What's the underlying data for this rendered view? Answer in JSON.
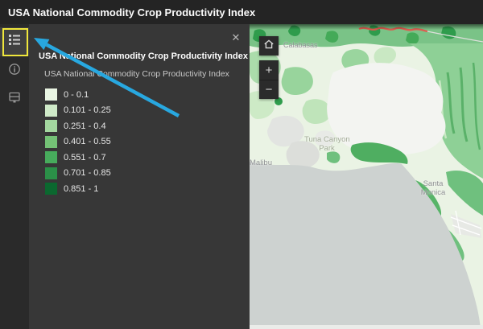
{
  "header": {
    "title": "USA National Commodity Crop Productivity Index"
  },
  "sidebar": {
    "items": [
      {
        "id": "legend",
        "selected": true,
        "highlighted": true
      },
      {
        "id": "information",
        "selected": false
      },
      {
        "id": "details",
        "selected": false
      }
    ]
  },
  "panel": {
    "close_icon": "✕",
    "legend": {
      "title": "USA National Commodity Crop Productivity Index",
      "layer_title": "USA National Commodity Crop Productivity Index",
      "classes": [
        {
          "label": "0 - 0.1",
          "color": "#e9f5e3"
        },
        {
          "label": "0.101 - 0.25",
          "color": "#cfeac8"
        },
        {
          "label": "0.251 - 0.4",
          "color": "#a3d79f"
        },
        {
          "label": "0.401 - 0.55",
          "color": "#74c276"
        },
        {
          "label": "0.551 - 0.7",
          "color": "#47ab5c"
        },
        {
          "label": "0.701 - 0.85",
          "color": "#2b9048"
        },
        {
          "label": "0.851 - 1",
          "color": "#0b682f"
        }
      ]
    }
  },
  "map": {
    "controls": {
      "zoom_in": "+",
      "zoom_out": "−"
    },
    "labels": {
      "calabasas": "Calabasas",
      "park_line1": "Tuna Canyon",
      "park_line2": "Park",
      "malibu": "Malibu",
      "santa_monica_line1": "Santa",
      "santa_monica_line2": "Monica"
    },
    "ocean_color": "#cdd2d0",
    "land_color": "#eaf3e4"
  },
  "annotation": {
    "arrow_color": "#28a8e0",
    "highlight_color": "#f0e73c"
  }
}
